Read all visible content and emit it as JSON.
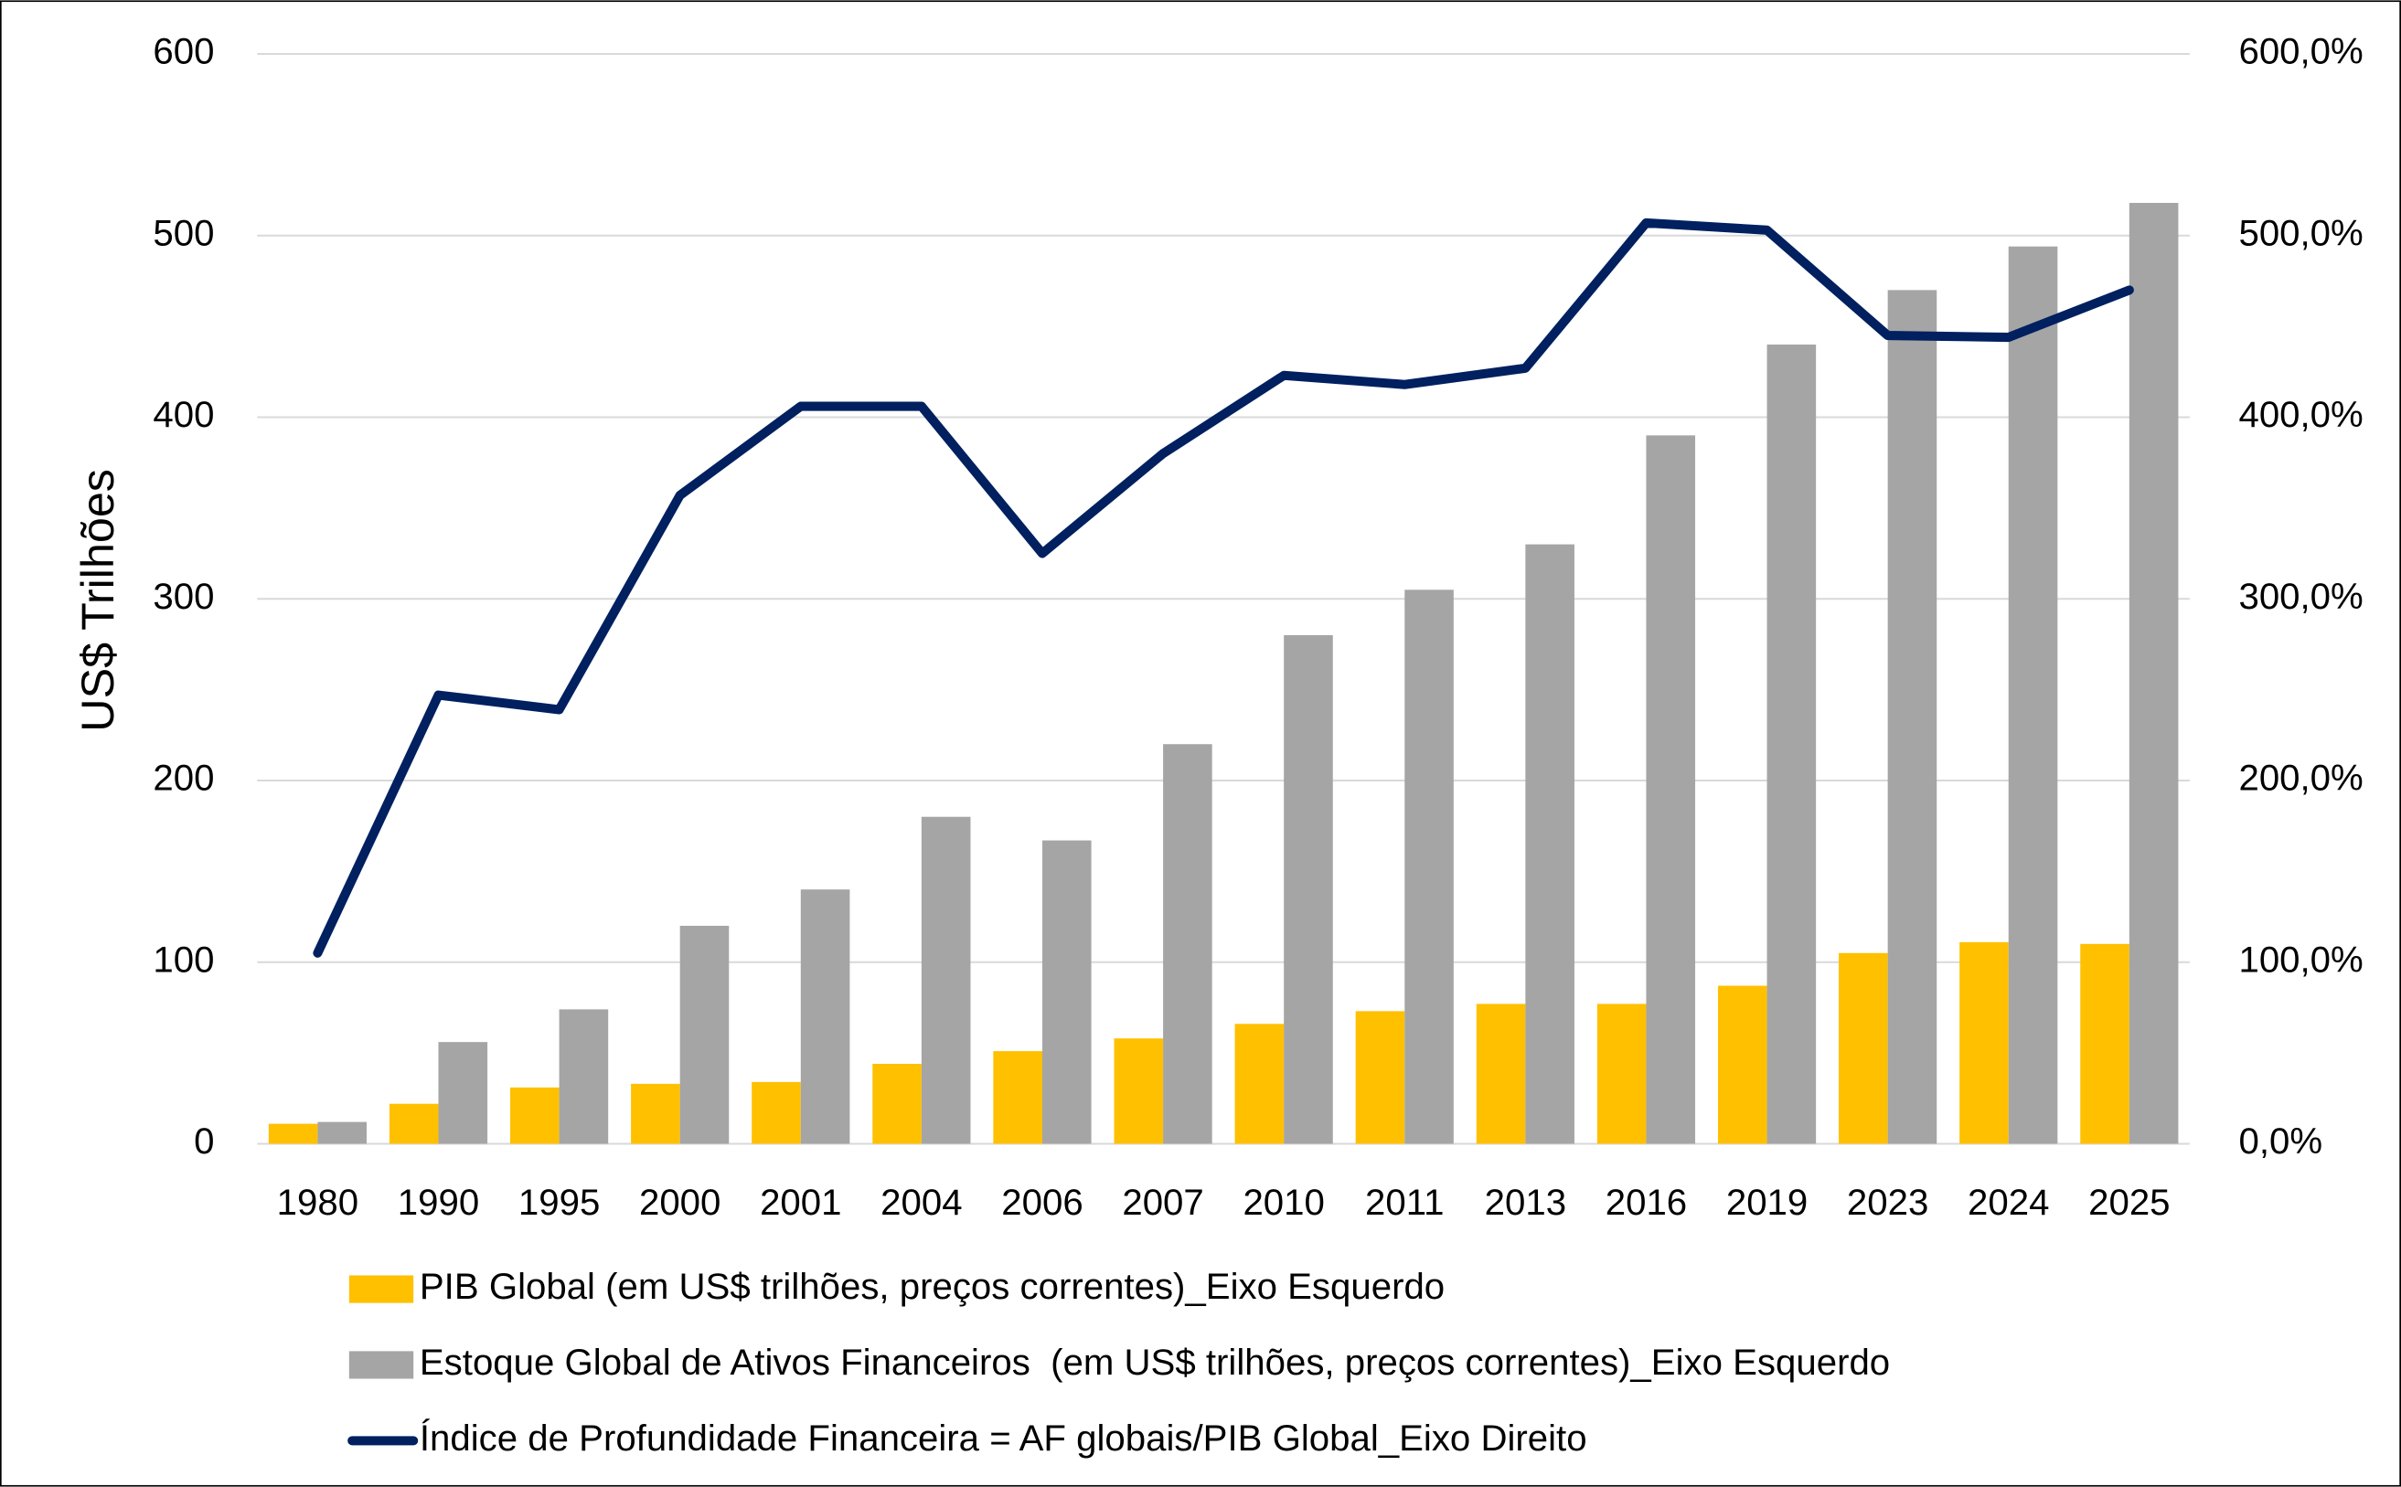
{
  "chart_data": {
    "type": "bar",
    "y_axis_label": "US$ Trilhões",
    "categories": [
      "1980",
      "1990",
      "1995",
      "2000",
      "2001",
      "2004",
      "2006",
      "2007",
      "2010",
      "2011",
      "2013",
      "2016",
      "2019",
      "2023",
      "2024",
      "2025"
    ],
    "series": [
      {
        "name": "PIB Global (em US$ trilhões, preços correntes)_Eixo Esquerdo",
        "type": "bar",
        "color": "#FFC000",
        "values": [
          11,
          22,
          31,
          33,
          34,
          44,
          51,
          58,
          66,
          73,
          77,
          77,
          87,
          105,
          111,
          110
        ]
      },
      {
        "name": "Estoque Global de Ativos Financeiros  (em US$ trilhões, preços correntes)_Eixo Esquerdo",
        "type": "bar",
        "color": "#A5A5A5",
        "values": [
          12,
          56,
          74,
          120,
          140,
          180,
          167,
          220,
          280,
          305,
          330,
          390,
          440,
          470,
          494,
          518
        ]
      },
      {
        "name": "Índice de Profundidade Financeira = AF globais/PIB Global_Eixo Direito",
        "type": "line",
        "axis": "y2",
        "color": "#002060",
        "values": [
          105,
          247,
          239,
          357,
          406,
          406,
          325,
          380,
          423,
          418,
          427,
          507,
          503,
          445,
          444,
          470
        ]
      }
    ],
    "ylim": [
      0,
      600
    ],
    "yticks": [
      0,
      100,
      200,
      300,
      400,
      500,
      600
    ],
    "y2lim": [
      0,
      600
    ],
    "y2ticks": [
      {
        "value": 0,
        "label": "0,0%"
      },
      {
        "value": 100,
        "label": "100,0%"
      },
      {
        "value": 200,
        "label": "200,0%"
      },
      {
        "value": 300,
        "label": "300,0%"
      },
      {
        "value": 400,
        "label": "400,0%"
      },
      {
        "value": 500,
        "label": "500,0%"
      },
      {
        "value": 600,
        "label": "600,0%"
      }
    ],
    "grid": true,
    "legend": "bottom"
  }
}
